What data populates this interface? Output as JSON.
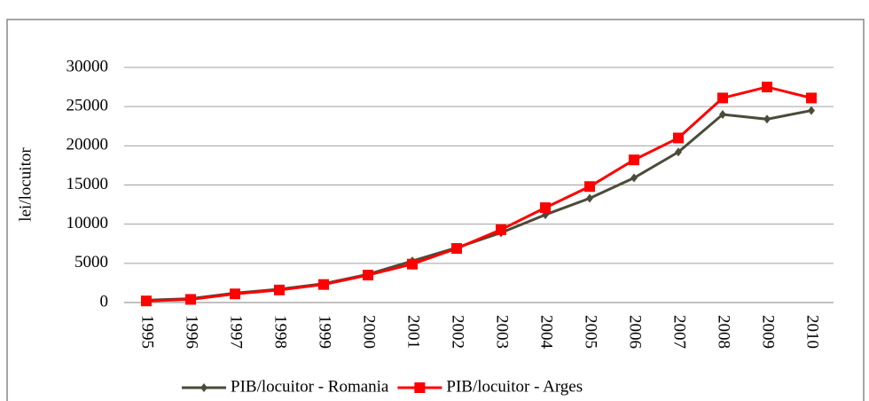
{
  "chart_data": {
    "type": "line",
    "y_label": "lei/locuitor",
    "categories": [
      "1995",
      "1996",
      "1997",
      "1998",
      "1999",
      "2000",
      "2001",
      "2002",
      "2003",
      "2004",
      "2005",
      "2006",
      "2007",
      "2008",
      "2009",
      "2010"
    ],
    "series": [
      {
        "name": "PIB/locuitor - Romania",
        "color": "#4b4b3a",
        "marker": "diamond",
        "values": [
          300,
          500,
          1200,
          1700,
          2400,
          3600,
          5300,
          7000,
          8900,
          11200,
          13300,
          15900,
          19200,
          24000,
          23400,
          24500
        ]
      },
      {
        "name": "PIB/locuitor - Arges",
        "color": "#ff0000",
        "marker": "square",
        "values": [
          200,
          400,
          1100,
          1600,
          2300,
          3500,
          4900,
          6900,
          9300,
          12100,
          14800,
          18200,
          21000,
          26100,
          27500,
          26100
        ]
      }
    ],
    "ylim": [
      0,
      30000
    ],
    "yticks": [
      0,
      5000,
      10000,
      15000,
      20000,
      25000,
      30000
    ],
    "grid": true
  }
}
